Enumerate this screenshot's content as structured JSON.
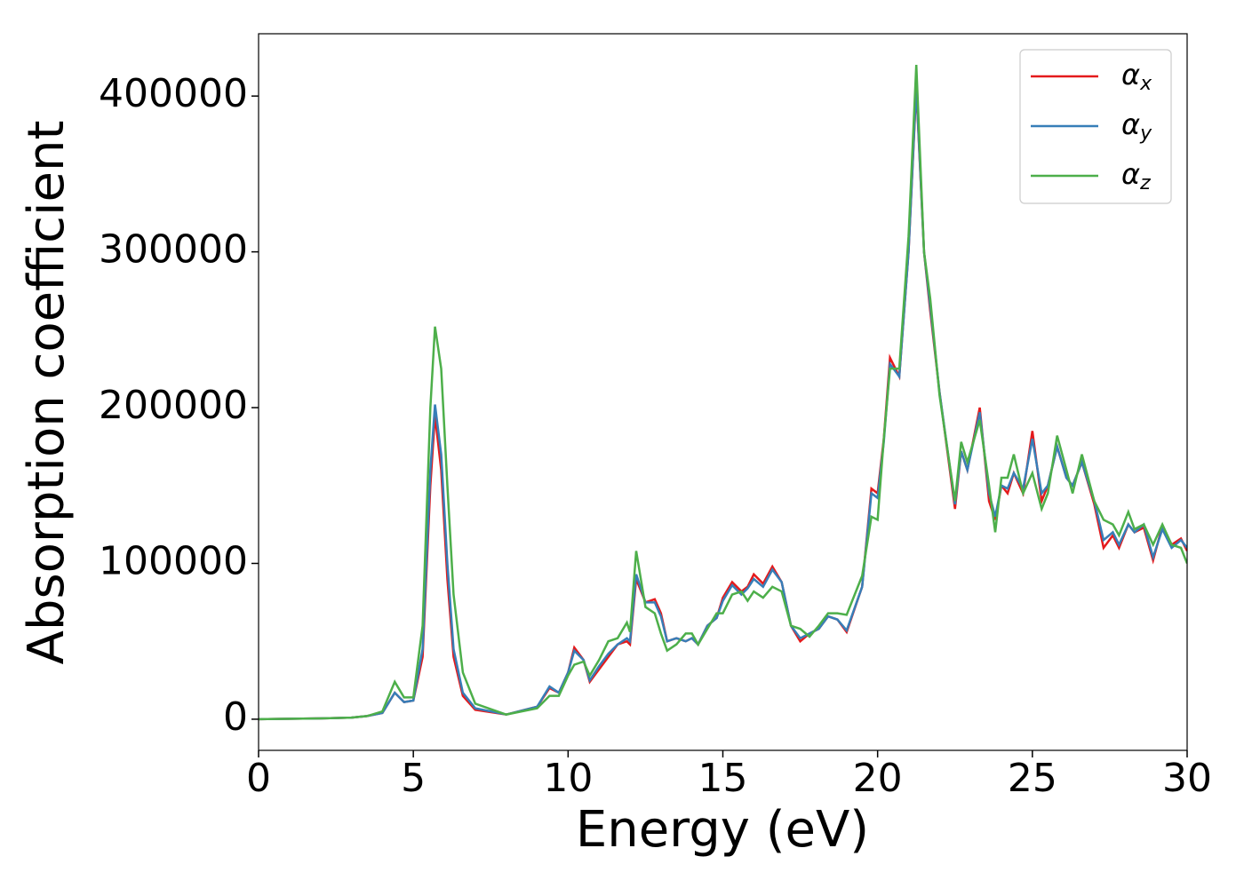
{
  "chart_data": {
    "type": "line",
    "x_label": "Energy (eV)",
    "y_label": "Absorption coefficient",
    "xlim": [
      0,
      30
    ],
    "xticks": [
      0,
      5,
      10,
      15,
      20,
      25,
      30
    ],
    "ylim": [
      -20000,
      440000
    ],
    "yticks": [
      0,
      100000,
      200000,
      300000,
      400000
    ],
    "legend": "upper right",
    "x": [
      0,
      2,
      3,
      3.5,
      4,
      4.4,
      4.7,
      5.0,
      5.3,
      5.55,
      5.7,
      5.9,
      6.1,
      6.3,
      6.6,
      7.0,
      8.0,
      9.0,
      9.4,
      9.7,
      10.0,
      10.2,
      10.5,
      10.7,
      11.0,
      11.3,
      11.6,
      11.9,
      12.0,
      12.2,
      12.5,
      12.8,
      13.0,
      13.2,
      13.5,
      13.8,
      14.0,
      14.2,
      14.5,
      14.8,
      15.0,
      15.3,
      15.6,
      15.8,
      16.0,
      16.3,
      16.6,
      16.9,
      17.2,
      17.5,
      17.8,
      18.1,
      18.4,
      18.7,
      19.0,
      19.5,
      19.8,
      20.0,
      20.2,
      20.4,
      20.7,
      21.0,
      21.25,
      21.5,
      21.7,
      22.0,
      22.5,
      22.7,
      22.9,
      23.3,
      23.6,
      23.8,
      24.0,
      24.2,
      24.4,
      24.7,
      25.0,
      25.3,
      25.5,
      25.8,
      26.1,
      26.3,
      26.6,
      27.0,
      27.3,
      27.6,
      27.8,
      28.1,
      28.3,
      28.6,
      28.9,
      29.2,
      29.5,
      29.8,
      30.0
    ],
    "series": [
      {
        "name": "αx",
        "color": "#e41a1c",
        "values": [
          0,
          500,
          1000,
          2000,
          4000,
          17000,
          11000,
          12000,
          40000,
          150000,
          195000,
          160000,
          90000,
          40000,
          15000,
          6000,
          3000,
          8000,
          20000,
          17000,
          30000,
          46000,
          38000,
          24000,
          32000,
          40000,
          48000,
          50000,
          48000,
          90000,
          75000,
          77000,
          68000,
          50000,
          52000,
          50000,
          52000,
          48000,
          60000,
          65000,
          78000,
          88000,
          82000,
          85000,
          93000,
          87000,
          98000,
          88000,
          60000,
          50000,
          55000,
          58000,
          66000,
          64000,
          56000,
          85000,
          148000,
          145000,
          180000,
          232000,
          220000,
          300000,
          405000,
          300000,
          262000,
          210000,
          135000,
          172000,
          160000,
          200000,
          140000,
          128000,
          150000,
          145000,
          158000,
          145000,
          185000,
          140000,
          150000,
          175000,
          155000,
          150000,
          165000,
          138000,
          110000,
          118000,
          110000,
          125000,
          120000,
          123000,
          102000,
          124000,
          112000,
          116000,
          108000
        ]
      },
      {
        "name": "αy",
        "color": "#377eb8",
        "values": [
          0,
          500,
          1000,
          2000,
          4000,
          17000,
          11000,
          12000,
          45000,
          160000,
          202000,
          170000,
          100000,
          45000,
          17000,
          7000,
          3000,
          8000,
          21000,
          17000,
          30000,
          44000,
          38000,
          25000,
          34000,
          42000,
          48000,
          52000,
          50000,
          93000,
          75000,
          75000,
          66000,
          50000,
          52000,
          50000,
          52000,
          48000,
          60000,
          65000,
          76000,
          86000,
          80000,
          84000,
          90000,
          85000,
          96000,
          88000,
          60000,
          52000,
          55000,
          58000,
          66000,
          64000,
          57000,
          85000,
          145000,
          142000,
          178000,
          228000,
          220000,
          300000,
          407000,
          300000,
          265000,
          210000,
          138000,
          172000,
          160000,
          197000,
          145000,
          130000,
          150000,
          148000,
          158000,
          148000,
          180000,
          145000,
          150000,
          175000,
          155000,
          150000,
          165000,
          140000,
          115000,
          120000,
          112000,
          125000,
          120000,
          125000,
          104000,
          122000,
          110000,
          115000,
          110000
        ]
      },
      {
        "name": "αz",
        "color": "#4daf4a",
        "values": [
          0,
          500,
          1000,
          2000,
          5000,
          24000,
          14000,
          14000,
          60000,
          200000,
          252000,
          225000,
          150000,
          80000,
          30000,
          10000,
          3000,
          7000,
          15000,
          15000,
          28000,
          35000,
          37000,
          28000,
          38000,
          50000,
          52000,
          62000,
          56000,
          108000,
          72000,
          68000,
          55000,
          44000,
          48000,
          55000,
          55000,
          48000,
          58000,
          68000,
          68000,
          80000,
          82000,
          76000,
          82000,
          78000,
          85000,
          82000,
          60000,
          58000,
          53000,
          60000,
          68000,
          68000,
          67000,
          92000,
          130000,
          128000,
          180000,
          225000,
          225000,
          310000,
          420000,
          300000,
          270000,
          208000,
          140000,
          178000,
          165000,
          192000,
          150000,
          120000,
          155000,
          155000,
          170000,
          145000,
          158000,
          135000,
          145000,
          182000,
          160000,
          145000,
          170000,
          140000,
          128000,
          125000,
          118000,
          133000,
          122000,
          125000,
          112000,
          125000,
          112000,
          110000,
          100000
        ]
      }
    ]
  }
}
